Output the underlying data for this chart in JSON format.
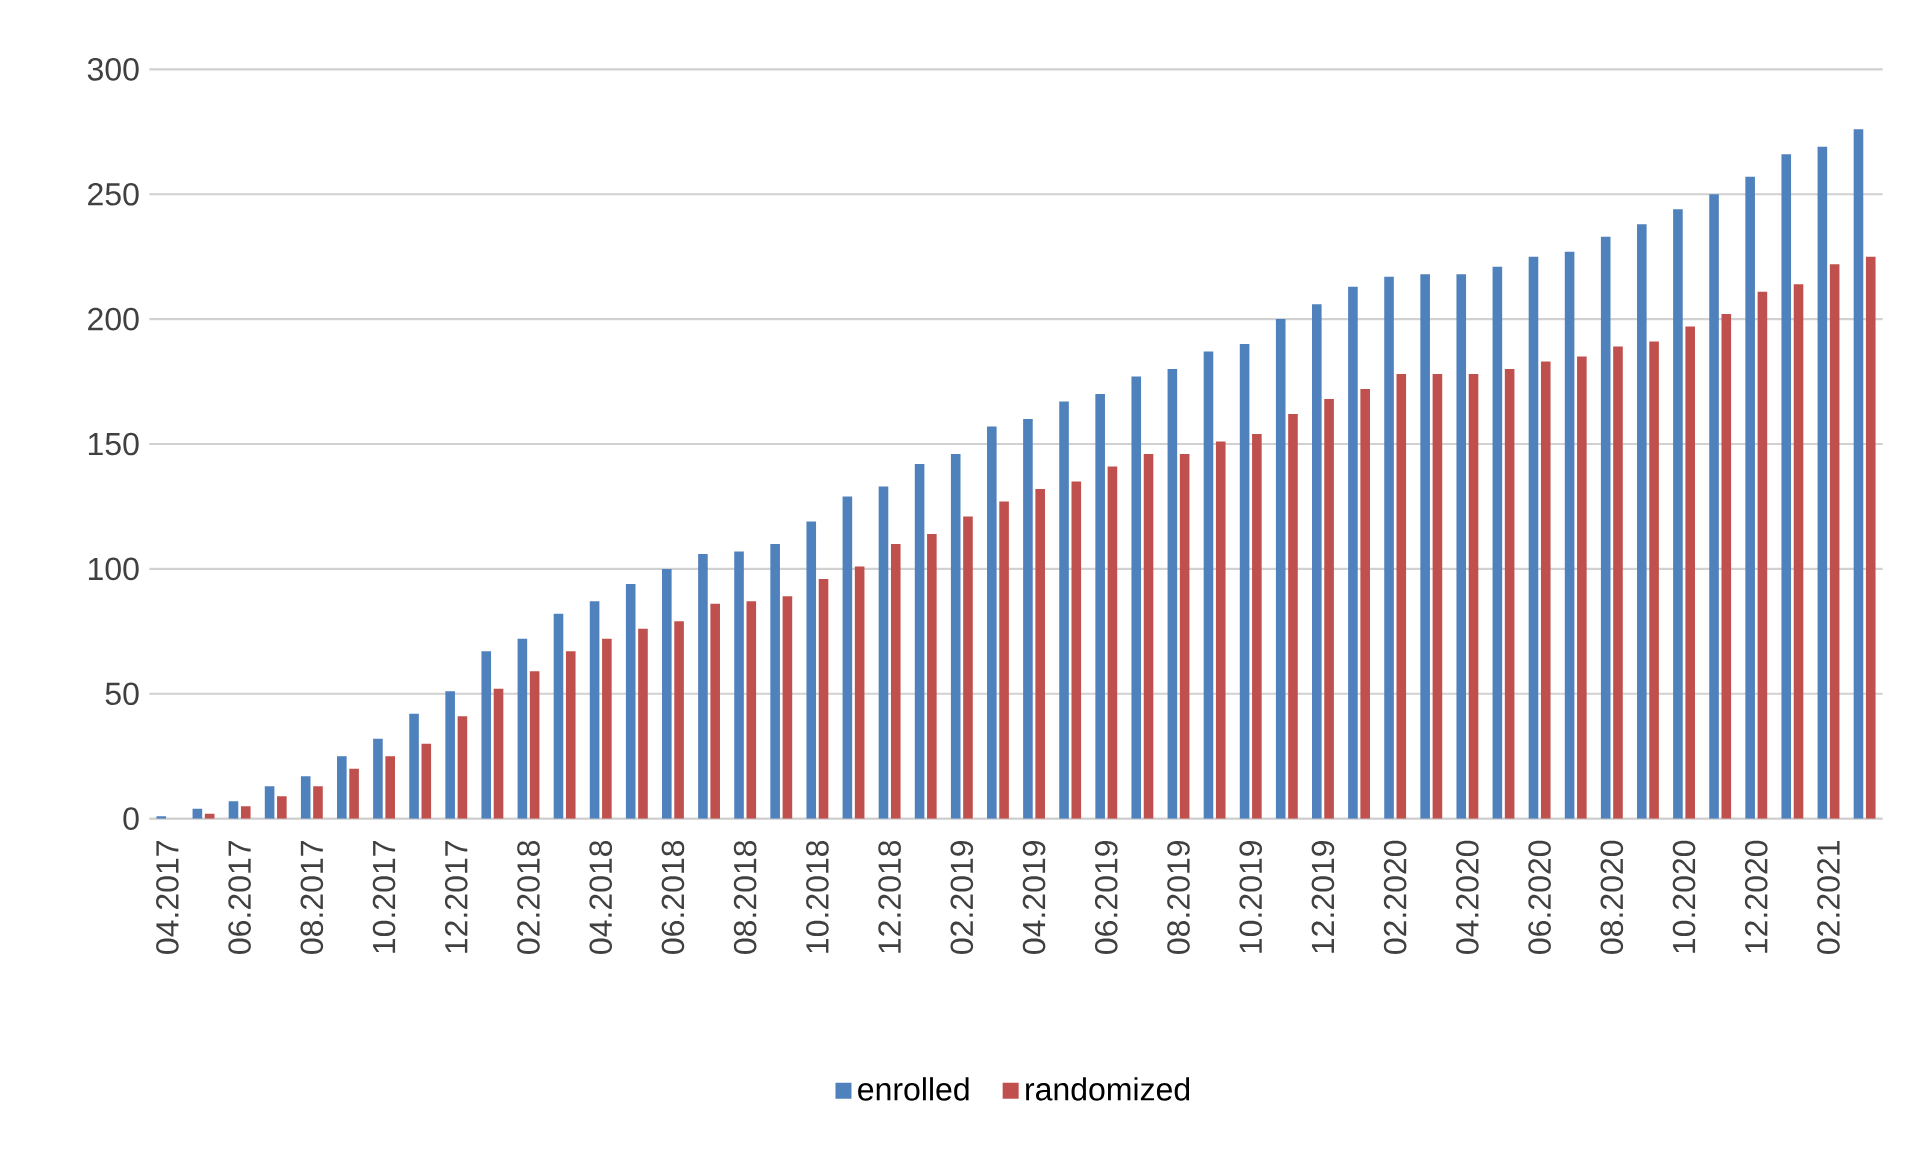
{
  "chart_data": {
    "type": "bar",
    "categories": [
      "04.2017",
      null,
      "06.2017",
      null,
      "08.2017",
      null,
      "10.2017",
      null,
      "12.2017",
      null,
      "02.2018",
      null,
      "04.2018",
      null,
      "06.2018",
      null,
      "08.2018",
      null,
      "10.2018",
      null,
      "12.2018",
      null,
      "02.2019",
      null,
      "04.2019",
      null,
      "06.2019",
      null,
      "08.2019",
      null,
      "10.2019",
      null,
      "12.2019",
      null,
      "02.2020",
      null,
      "04.2020",
      null,
      "06.2020",
      null,
      "08.2020",
      null,
      "10.2020",
      null,
      "12.2020",
      null,
      "02.2021",
      null
    ],
    "series": [
      {
        "name": "enrolled",
        "color": "#4f81bd",
        "values": [
          1,
          4,
          7,
          13,
          17,
          25,
          32,
          42,
          51,
          67,
          72,
          82,
          87,
          94,
          100,
          106,
          107,
          110,
          119,
          129,
          133,
          142,
          146,
          157,
          160,
          167,
          170,
          177,
          180,
          187,
          190,
          200,
          206,
          213,
          217,
          218,
          218,
          221,
          225,
          227,
          233,
          238,
          244,
          250,
          257,
          266,
          269,
          276
        ]
      },
      {
        "name": "randomized",
        "color": "#c0504d",
        "values": [
          0,
          2,
          5,
          9,
          13,
          20,
          25,
          30,
          41,
          52,
          59,
          67,
          72,
          76,
          79,
          86,
          87,
          89,
          96,
          101,
          110,
          114,
          121,
          127,
          132,
          135,
          141,
          146,
          146,
          151,
          154,
          162,
          168,
          172,
          178,
          178,
          178,
          180,
          183,
          185,
          189,
          191,
          197,
          202,
          211,
          214,
          222,
          225
        ]
      }
    ],
    "ylim": [
      0,
      300
    ],
    "yticks": [
      0,
      50,
      100,
      150,
      200,
      250,
      300
    ],
    "grid": "y",
    "legend": "bottom"
  }
}
